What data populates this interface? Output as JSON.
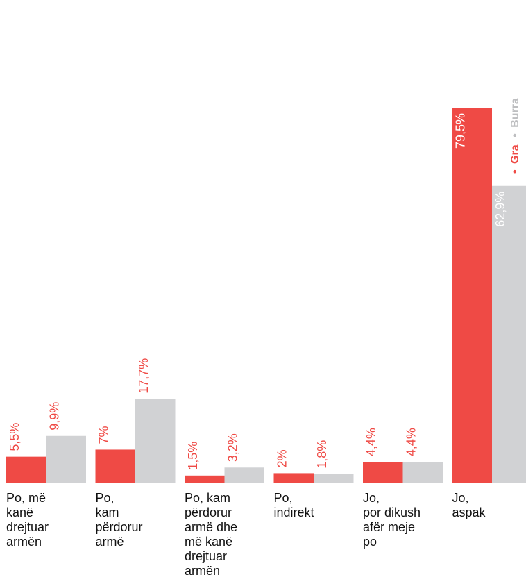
{
  "colors": {
    "gra": "#ef4a45",
    "burra": "#d1d2d4"
  },
  "legend": {
    "gra": "Gra",
    "burra": "Burra",
    "marker": "•"
  },
  "chart_data": {
    "type": "bar",
    "categories": [
      [
        "Po, më",
        "kanë",
        "drejtuar",
        "armën"
      ],
      [
        "Po,",
        "kam",
        "përdorur",
        "armë"
      ],
      [
        "Po, kam",
        "përdorur",
        "armë dhe",
        "më kanë",
        "drejtuar",
        "armën"
      ],
      [
        "Po,",
        "indirekt"
      ],
      [
        "Jo,",
        "por dikush",
        "afër meje",
        "po"
      ],
      [
        "Jo,",
        "aspak"
      ]
    ],
    "series": [
      {
        "name": "Gra",
        "values": [
          5.5,
          7,
          1.5,
          2,
          4.4,
          79.5
        ],
        "labels": [
          "5,5%",
          "7%",
          "1,5%",
          "2%",
          "4,4%",
          "79,5%"
        ]
      },
      {
        "name": "Burra",
        "values": [
          9.9,
          17.7,
          3.2,
          1.8,
          4.4,
          62.9
        ],
        "labels": [
          "9,9%",
          "17,7%",
          "3,2%",
          "1,8%",
          "4,4%",
          "62,9%"
        ]
      }
    ],
    "ylim": [
      0,
      100
    ],
    "grid": false,
    "legend_position": "top-right"
  }
}
